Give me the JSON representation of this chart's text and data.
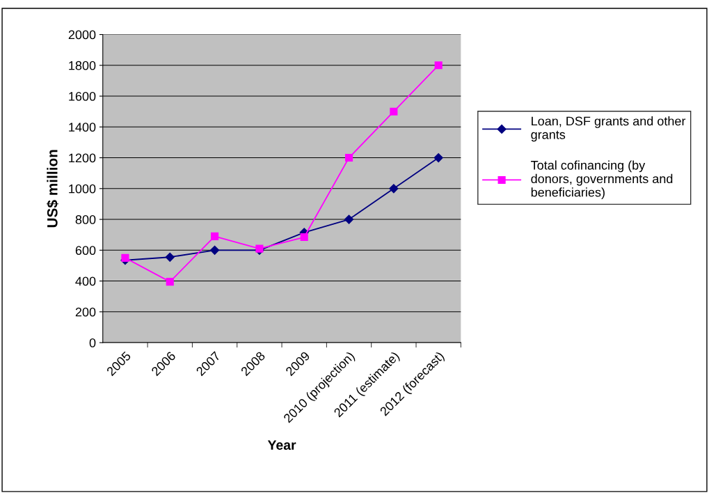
{
  "chart_data": {
    "type": "line",
    "xlabel": "Year",
    "ylabel": "US$ million",
    "categories": [
      "2005",
      "2006",
      "2007",
      "2008",
      "2009",
      "2010 (projection)",
      "2011 (estimate)",
      "2012 (forecast)"
    ],
    "series": [
      {
        "name": "Loan, DSF grants and other grants",
        "color": "#000080",
        "marker": "diamond",
        "values": [
          535,
          555,
          600,
          600,
          715,
          800,
          1000,
          1200
        ]
      },
      {
        "name": "Total cofinancing (by donors, governments and beneficiaries)",
        "color": "#ff00ff",
        "marker": "square",
        "values": [
          550,
          395,
          690,
          610,
          685,
          1200,
          1500,
          1800
        ]
      }
    ],
    "ylim": [
      0,
      2000
    ],
    "yticks": [
      0,
      200,
      400,
      600,
      800,
      1000,
      1200,
      1400,
      1600,
      1800,
      2000
    ],
    "grid": "y",
    "legend": "right",
    "line_style": "solid"
  }
}
